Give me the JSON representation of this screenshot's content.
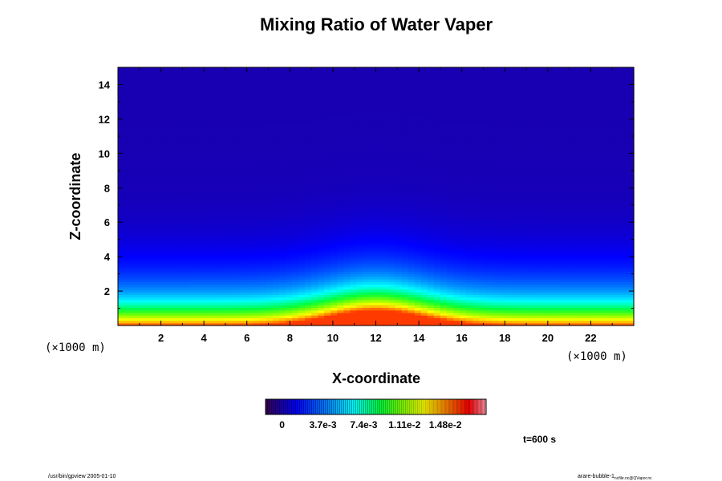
{
  "chart_data": {
    "type": "heatmap",
    "title": "Mixing Ratio of Water Vaper",
    "xlabel": "X-coordinate",
    "ylabel": "Z-coordinate",
    "x_unit_label": "(×1000 m)",
    "z_unit_label": "(×1000 m)",
    "xlim": [
      0,
      24
    ],
    "ylim": [
      0,
      15
    ],
    "xticks": [
      2,
      4,
      6,
      8,
      10,
      12,
      14,
      16,
      18,
      20,
      22
    ],
    "yticks": [
      2,
      4,
      6,
      8,
      10,
      12,
      14
    ],
    "grid": false,
    "colorbar": {
      "min": -0.0015,
      "max": 0.0185,
      "tick_values": [
        0,
        0.0037,
        0.0074,
        0.0111,
        0.0148
      ],
      "tick_labels": [
        "0",
        "3.7e-3",
        "7.4e-3",
        "1.11e-2",
        "1.48e-2"
      ]
    },
    "field": {
      "surface_value": 0.016,
      "scale_height_km": 1.6,
      "bubble_center_x_km": 12,
      "bubble_width_km": 3.2,
      "bubble_height_km": 0.9
    },
    "time_label": "t=600 s"
  },
  "footer": {
    "left": "/usr/bin/gpview 2005-01-10",
    "right": "arare-bubble-1",
    "right_sub": "ncfile.nc@QVapor.nc"
  }
}
